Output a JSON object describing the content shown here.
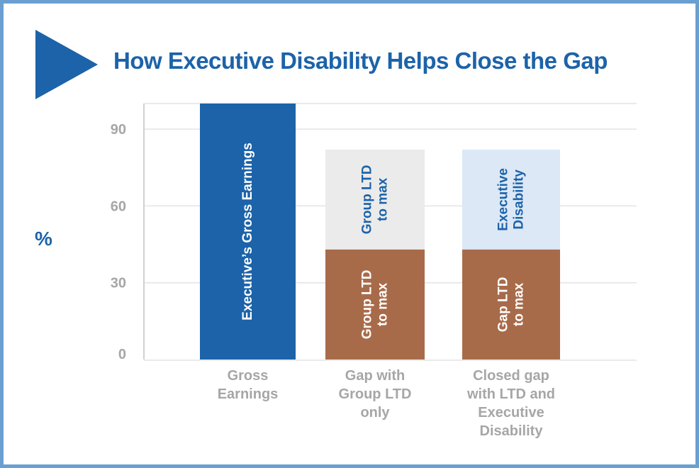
{
  "header": {
    "title": "How Executive Disability Helps Close the Gap",
    "icon": "play-triangle-icon"
  },
  "colors": {
    "border": "#6a9fd0",
    "title": "#1c63a9",
    "gross": "#1c63a9",
    "group_ltd": "#a86b4a",
    "gap_gray": "#ebebeb",
    "exec_disability": "#dce8f5",
    "axis_text": "#a6a6a6",
    "grid": "#e3e3e3"
  },
  "chart_data": {
    "type": "bar",
    "stacked": true,
    "title": "How Executive Disability Helps Close the Gap",
    "xlabel": "",
    "ylabel": "%",
    "ylim": [
      0,
      100
    ],
    "yticks": [
      0,
      30,
      60,
      90
    ],
    "grid": true,
    "legend": "none",
    "categories": [
      [
        "Gross",
        "Earnings"
      ],
      [
        "Gap with",
        "Group LTD",
        "only"
      ],
      [
        "Closed gap",
        "with LTD and",
        "Executive",
        "Disability"
      ]
    ],
    "bars": [
      {
        "segments": [
          {
            "value": 100,
            "label": [
              "Executive’s Gross Earnings"
            ],
            "color": "#1c63a9",
            "text_color": "#ffffff"
          }
        ]
      },
      {
        "segments": [
          {
            "value": 43,
            "label": [
              "Group LTD",
              "to max"
            ],
            "color": "#a86b4a",
            "text_color": "#ffffff"
          },
          {
            "value": 39,
            "label": [
              "Group LTD",
              "to max"
            ],
            "color": "#ebebeb",
            "text_color": "#1c63a9"
          }
        ]
      },
      {
        "segments": [
          {
            "value": 43,
            "label": [
              "Gap LTD",
              "to max"
            ],
            "color": "#a86b4a",
            "text_color": "#ffffff"
          },
          {
            "value": 39,
            "label": [
              "Executive",
              "Disability"
            ],
            "color": "#dce8f5",
            "text_color": "#1c63a9"
          }
        ]
      }
    ]
  }
}
